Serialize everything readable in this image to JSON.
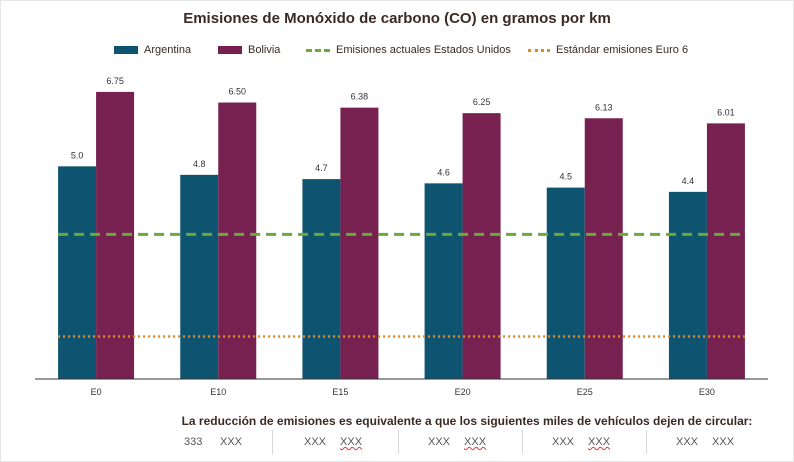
{
  "chart_data": {
    "type": "bar",
    "title": "Emisiones de Monóxido de carbono (CO) en gramos por km",
    "categories": [
      "E0",
      "E10",
      "E15",
      "E20",
      "E25",
      "E30"
    ],
    "series": [
      {
        "name": "Argentina",
        "color": "#0e5470",
        "values": [
          5.0,
          4.8,
          4.7,
          4.6,
          4.5,
          4.4
        ],
        "labels": [
          "5.0",
          "4.8",
          "4.7",
          "4.6",
          "4.5",
          "4.4"
        ]
      },
      {
        "name": "Bolivia",
        "color": "#76214f",
        "values": [
          6.75,
          6.5,
          6.38,
          6.25,
          6.13,
          6.01
        ],
        "labels": [
          "6.75",
          "6.50",
          "6.38",
          "6.25",
          "6.13",
          "6.01"
        ]
      }
    ],
    "reference_lines": [
      {
        "name": "Emisiones actuales Estados Unidos",
        "style": "dashed",
        "color": "#6aaa3a",
        "value": 3.4
      },
      {
        "name": "Estándar emisiones Euro 6",
        "style": "dotted",
        "color": "#e08a1e",
        "value": 1.0
      }
    ],
    "ylim": [
      0,
      7.5
    ],
    "grid": false,
    "legend_position": "top"
  },
  "footer": {
    "text": "La reducción de emisiones es equivalente a que los siguientes  miles de vehículos dejen de circular:",
    "cells": [
      {
        "a": "333",
        "b": "XXX"
      },
      {
        "a": "XXX",
        "b": "XXX"
      },
      {
        "a": "XXX",
        "b": "XXX"
      },
      {
        "a": "XXX",
        "b": "XXX"
      },
      {
        "a": "XXX",
        "b": "XXX"
      }
    ]
  }
}
